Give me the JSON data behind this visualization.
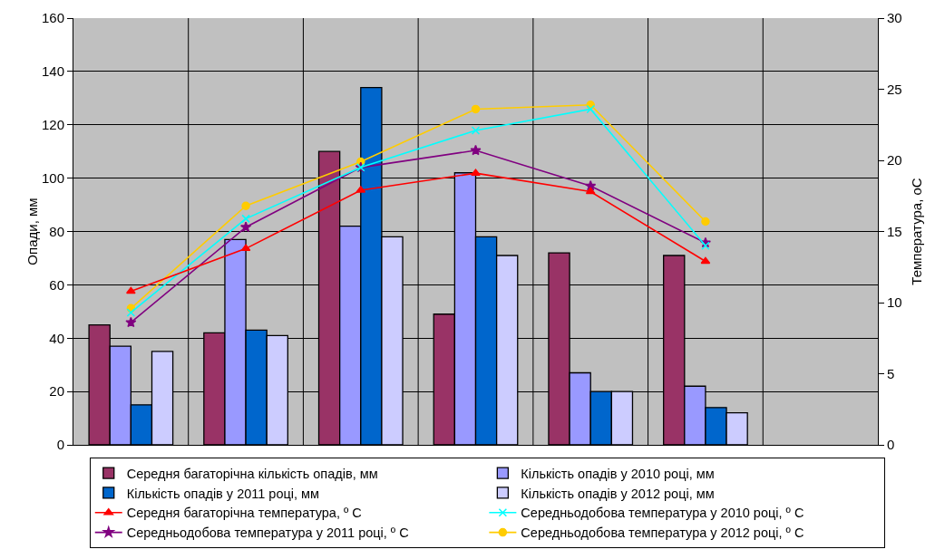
{
  "chart_data": {
    "type": "bar",
    "ylabel": "Опади, мм",
    "y2label": "Температура, oC",
    "categories": [
      null,
      null,
      null,
      null,
      null,
      null,
      null
    ],
    "ylim": [
      0,
      160
    ],
    "yticks": [
      0,
      20,
      40,
      60,
      80,
      100,
      120,
      140,
      160
    ],
    "y2lim": [
      0,
      30
    ],
    "y2ticks": [
      0,
      5,
      10,
      15,
      20,
      25,
      30
    ],
    "grid": true,
    "legend": "bottom",
    "series": [
      {
        "name": "Середня багаторічна кількість опадів, мм",
        "color": "#993366",
        "values": [
          45,
          42,
          110,
          49,
          72,
          71,
          null
        ]
      },
      {
        "name": "Кількість опадів у 2010 році, мм",
        "color": "#9999ff",
        "values": [
          37,
          77,
          82,
          102,
          27,
          22,
          null
        ]
      },
      {
        "name": "Кількість опадів у 2011 році, мм",
        "color": "#0066cc",
        "values": [
          15,
          43,
          134,
          78,
          20,
          14,
          null
        ]
      },
      {
        "name": "Кількість опадів у 2012 році, мм",
        "color": "#ccccff",
        "values": [
          35,
          41,
          78,
          71,
          20,
          12,
          null
        ]
      },
      {
        "name": "Середня багаторічна температура, º С",
        "type": "line",
        "axis": "y2",
        "marker": "triangle",
        "color": "#ff0000",
        "values": [
          10.8,
          13.8,
          17.9,
          19.1,
          17.8,
          12.9,
          null
        ]
      },
      {
        "name": "Середньодобова температура у 2010 році, º С",
        "type": "line",
        "axis": "y2",
        "marker": "cross",
        "color": "#00ffff",
        "values": [
          9.3,
          15.9,
          19.5,
          22.1,
          23.6,
          14.0,
          null
        ]
      },
      {
        "name": "Середньодобова температура у 2011 році, º С",
        "type": "line",
        "axis": "y2",
        "marker": "star",
        "color": "#800080",
        "values": [
          8.6,
          15.3,
          19.5,
          20.7,
          18.2,
          14.2,
          null
        ]
      },
      {
        "name": "Середньодобова температура у 2012 році, º С",
        "type": "line",
        "axis": "y2",
        "marker": "circle",
        "color": "#ffcc00",
        "values": [
          9.6,
          16.8,
          19.9,
          23.6,
          23.9,
          15.7,
          null
        ]
      }
    ]
  }
}
